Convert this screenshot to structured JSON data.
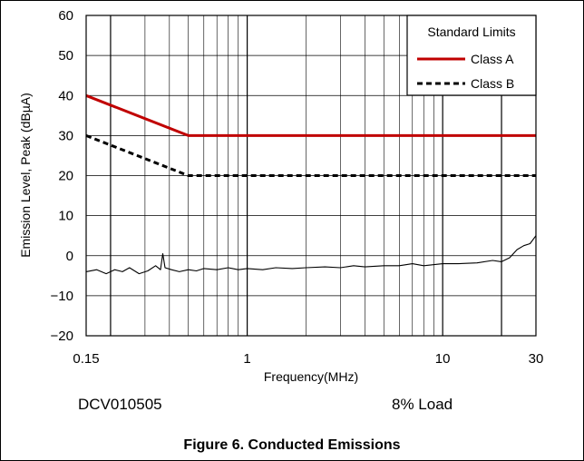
{
  "chart_data": {
    "type": "line",
    "title": "",
    "xlabel": "Frequency(MHz)",
    "ylabel": "Emission Level, Peak (dBµA)",
    "x_scale": "log",
    "xlim": [
      0.15,
      30
    ],
    "ylim": [
      -20,
      60
    ],
    "x_tick_values": [
      0.15,
      1,
      10,
      30
    ],
    "x_tick_labels": [
      "0.15",
      "1",
      "10",
      "30"
    ],
    "y_tick_values": [
      -20,
      -10,
      0,
      10,
      20,
      30,
      40,
      50,
      60
    ],
    "y_tick_labels": [
      "−20",
      "−10",
      "0",
      "10",
      "20",
      "30",
      "40",
      "50",
      "60"
    ],
    "grid": true,
    "legend_title": "Standard Limits",
    "legend_position": "top-right",
    "series": [
      {
        "name": "Class A",
        "style": "solid",
        "color": "#c00000",
        "x": [
          0.15,
          0.5,
          30
        ],
        "y": [
          40,
          30,
          30
        ]
      },
      {
        "name": "Class B",
        "style": "dashed",
        "color": "#000000",
        "x": [
          0.15,
          0.5,
          30
        ],
        "y": [
          30,
          20,
          20
        ]
      },
      {
        "name": "",
        "style": "solid-thin",
        "color": "#000000",
        "x": [
          0.15,
          0.17,
          0.19,
          0.21,
          0.23,
          0.25,
          0.28,
          0.31,
          0.34,
          0.36,
          0.37,
          0.38,
          0.41,
          0.45,
          0.5,
          0.55,
          0.6,
          0.7,
          0.8,
          0.9,
          1.0,
          1.2,
          1.4,
          1.7,
          2.0,
          2.5,
          3.0,
          3.5,
          4.0,
          5.0,
          6.0,
          7.0,
          8.0,
          10.0,
          12.0,
          15.0,
          18.0,
          20.0,
          22.0,
          24.0,
          26.0,
          28.0,
          30.0
        ],
        "y": [
          -4,
          -3.5,
          -4.5,
          -3.5,
          -4,
          -3,
          -4.5,
          -3.8,
          -2.5,
          -3.5,
          0.5,
          -3,
          -3.5,
          -4,
          -3.5,
          -3.8,
          -3.2,
          -3.5,
          -3,
          -3.5,
          -3.2,
          -3.5,
          -3,
          -3.2,
          -3,
          -2.8,
          -3,
          -2.5,
          -2.8,
          -2.5,
          -2.5,
          -2,
          -2.5,
          -2,
          -2,
          -1.8,
          -1.2,
          -1.5,
          -0.5,
          1.5,
          2.5,
          3,
          5
        ]
      }
    ]
  },
  "annotations": {
    "device": "DCV010505",
    "load": "8% Load"
  },
  "caption": "Figure 6. Conducted Emissions"
}
